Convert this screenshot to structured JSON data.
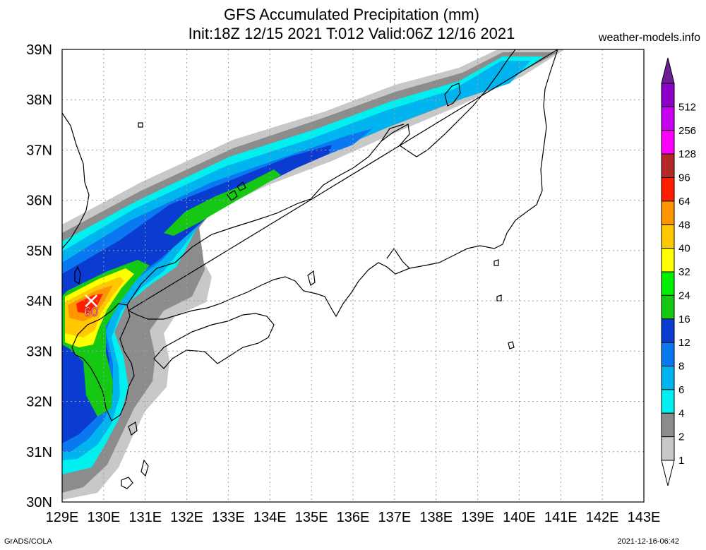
{
  "title": {
    "line1": "GFS Accumulated Precipitation (mm)",
    "line2": "Init:18Z 12/15 2021 T:012 Valid:06Z 12/16 2021"
  },
  "site": "weather-models.info",
  "footer": {
    "left": "GrADS/COLA",
    "right": "2021-12-16-06:42"
  },
  "map": {
    "lon_range": [
      129,
      143
    ],
    "lat_range": [
      30,
      39
    ],
    "lon_labels": [
      "129E",
      "130E",
      "131E",
      "132E",
      "133E",
      "134E",
      "135E",
      "136E",
      "137E",
      "138E",
      "139E",
      "140E",
      "141E",
      "142E",
      "143E"
    ],
    "lat_labels": [
      "30N",
      "31N",
      "32N",
      "33N",
      "34N",
      "35N",
      "36N",
      "37N",
      "38N",
      "39N"
    ],
    "grid": true,
    "max_marker": {
      "label": "60",
      "lon": 129.7,
      "lat": 34.0
    }
  },
  "colorbar": {
    "levels": [
      "1",
      "2",
      "4",
      "6",
      "8",
      "12",
      "16",
      "24",
      "32",
      "40",
      "48",
      "64",
      "96",
      "128",
      "256",
      "512"
    ],
    "colors": [
      "#c8c8c8",
      "#8c8c8c",
      "#00f0f0",
      "#00b4f0",
      "#0a78f0",
      "#0a3cd2",
      "#14c814",
      "#00f000",
      "#ffff00",
      "#ffc800",
      "#ff9600",
      "#ff1e00",
      "#b42828",
      "#ff00ff",
      "#c800f0",
      "#8c00c8",
      "#6e1e96"
    ],
    "low_color": "#ffffff"
  }
}
